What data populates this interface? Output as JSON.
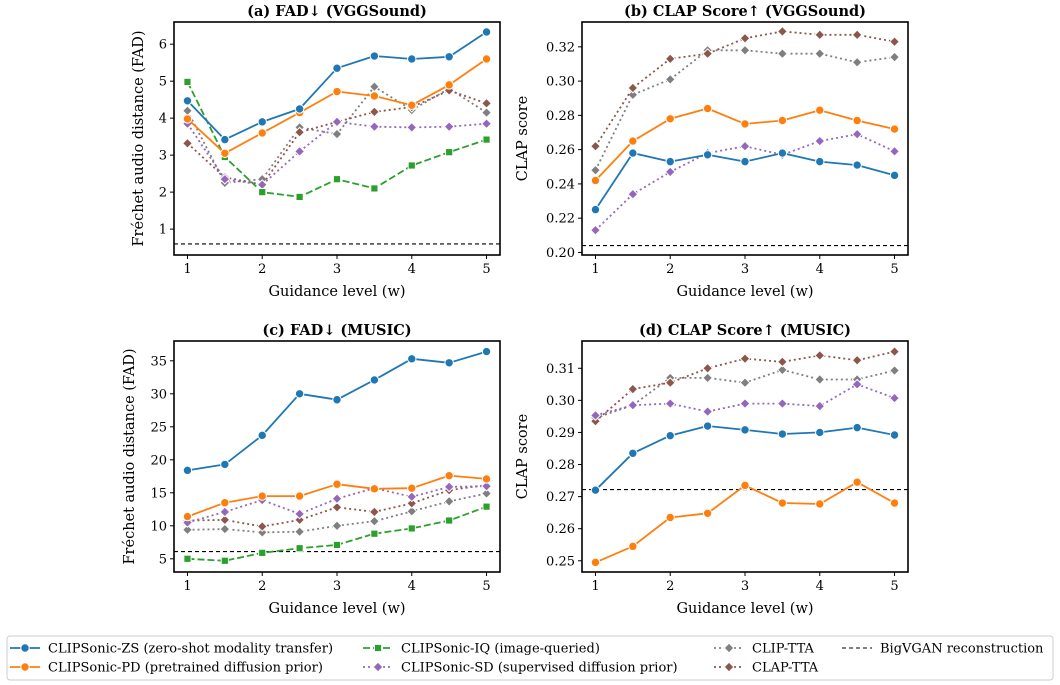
{
  "legend": {
    "items": [
      {
        "label": "CLIPSonic-ZS (zero-shot modality transfer)",
        "series": "zs"
      },
      {
        "label": "CLIPSonic-PD (pretrained diffusion prior)",
        "series": "pd"
      },
      {
        "label": "CLIPSonic-IQ (image-queried)",
        "series": "iq"
      },
      {
        "label": "CLIPSonic-SD (supervised diffusion prior)",
        "series": "sd"
      },
      {
        "label": "CLIP-TTA",
        "series": "cliptta"
      },
      {
        "label": "CLAP-TTA",
        "series": "claptta"
      },
      {
        "label": "BigVGAN reconstruction",
        "series": "bigvgan"
      }
    ]
  },
  "styles": {
    "zs": {
      "color": "#1f77b4",
      "dash": "",
      "marker": "circle"
    },
    "pd": {
      "color": "#ff7f0e",
      "dash": "",
      "marker": "circle"
    },
    "iq": {
      "color": "#2ca02c",
      "dash": "7,3",
      "marker": "square"
    },
    "sd": {
      "color": "#9467bd",
      "dash": "2,3",
      "marker": "diamond"
    },
    "cliptta": {
      "color": "#7f7f7f",
      "dash": "2,3",
      "marker": "diamond"
    },
    "claptta": {
      "color": "#8c564b",
      "dash": "2,3",
      "marker": "diamond"
    },
    "bigvgan": {
      "color": "#000000",
      "dash": "4,3",
      "marker": "none"
    }
  },
  "chart_data": [
    {
      "type": "line",
      "title": "(a) FAD↓ (VGGSound)",
      "xlabel": "Guidance level (w)",
      "ylabel": "Fréchet audio distance (FAD)",
      "x": [
        1,
        1.5,
        2,
        2.5,
        3,
        3.5,
        4,
        4.5,
        5
      ],
      "xlim": [
        0.82,
        5.18
      ],
      "ylim": [
        0.3,
        6.6
      ],
      "xticks": [
        1,
        2,
        3,
        4,
        5
      ],
      "yticks": [
        1,
        2,
        3,
        4,
        5,
        6
      ],
      "ytick_labels": [
        "1",
        "2",
        "3",
        "4",
        "5",
        "6"
      ],
      "reference_line": {
        "name": "BigVGAN reconstruction",
        "value": 0.6
      },
      "series": [
        {
          "key": "cliptta",
          "name": "CLIP-TTA",
          "values": [
            4.2,
            2.25,
            2.35,
            3.75,
            3.57,
            4.85,
            4.22,
            4.8,
            4.15
          ]
        },
        {
          "key": "claptta",
          "name": "CLAP-TTA",
          "values": [
            3.32,
            2.4,
            2.2,
            3.62,
            3.9,
            4.17,
            4.3,
            4.75,
            4.4
          ]
        },
        {
          "key": "sd",
          "name": "CLIPSonic-SD (supervised diffusion prior)",
          "values": [
            3.85,
            2.35,
            2.2,
            3.1,
            3.9,
            3.77,
            3.75,
            3.77,
            3.85
          ]
        },
        {
          "key": "iq",
          "name": "CLIPSonic-IQ (image-queried)",
          "values": [
            4.98,
            2.95,
            2.0,
            1.87,
            2.35,
            2.1,
            2.72,
            3.08,
            3.42
          ]
        },
        {
          "key": "pd",
          "name": "CLIPSonic-PD (pretrained diffusion prior)",
          "values": [
            3.98,
            3.05,
            3.6,
            4.15,
            4.72,
            4.6,
            4.35,
            4.9,
            5.6
          ]
        },
        {
          "key": "zs",
          "name": "CLIPSonic-ZS (zero-shot modality transfer)",
          "values": [
            4.47,
            3.42,
            3.9,
            4.25,
            5.35,
            5.68,
            5.6,
            5.66,
            6.33
          ]
        }
      ]
    },
    {
      "type": "line",
      "title": "(b) CLAP Score↑ (VGGSound)",
      "xlabel": "Guidance level (w)",
      "ylabel": "CLAP score",
      "x": [
        1,
        1.5,
        2,
        2.5,
        3,
        3.5,
        4,
        4.5,
        5
      ],
      "xlim": [
        0.82,
        5.18
      ],
      "ylim": [
        0.1985,
        0.3345
      ],
      "xticks": [
        1,
        2,
        3,
        4,
        5
      ],
      "yticks": [
        0.2,
        0.22,
        0.24,
        0.26,
        0.28,
        0.3,
        0.32
      ],
      "ytick_labels": [
        "0.20",
        "0.22",
        "0.24",
        "0.26",
        "0.28",
        "0.30",
        "0.32"
      ],
      "reference_line": {
        "name": "BigVGAN reconstruction",
        "value": 0.204
      },
      "series": [
        {
          "key": "cliptta",
          "name": "CLIP-TTA",
          "values": [
            0.248,
            0.292,
            0.301,
            0.318,
            0.318,
            0.316,
            0.316,
            0.311,
            0.314
          ]
        },
        {
          "key": "claptta",
          "name": "CLAP-TTA",
          "values": [
            0.262,
            0.296,
            0.313,
            0.316,
            0.325,
            0.329,
            0.327,
            0.327,
            0.323
          ]
        },
        {
          "key": "sd",
          "name": "CLIPSonic-SD (supervised diffusion prior)",
          "values": [
            0.213,
            0.234,
            0.247,
            0.258,
            0.262,
            0.257,
            0.265,
            0.269,
            0.259
          ]
        },
        {
          "key": "pd",
          "name": "CLIPSonic-PD (pretrained diffusion prior)",
          "values": [
            0.242,
            0.265,
            0.278,
            0.284,
            0.275,
            0.277,
            0.283,
            0.277,
            0.272
          ]
        },
        {
          "key": "zs",
          "name": "CLIPSonic-ZS (zero-shot modality transfer)",
          "values": [
            0.225,
            0.258,
            0.253,
            0.257,
            0.253,
            0.258,
            0.253,
            0.251,
            0.245
          ]
        }
      ]
    },
    {
      "type": "line",
      "title": "(c) FAD↓ (MUSIC)",
      "xlabel": "Guidance level (w)",
      "ylabel": "Fréchet audio distance (FAD)",
      "x": [
        1,
        1.5,
        2,
        2.5,
        3,
        3.5,
        4,
        4.5,
        5
      ],
      "xlim": [
        0.82,
        5.18
      ],
      "ylim": [
        3.0,
        38.0
      ],
      "xticks": [
        1,
        2,
        3,
        4,
        5
      ],
      "yticks": [
        5,
        10,
        15,
        20,
        25,
        30,
        35
      ],
      "ytick_labels": [
        "5",
        "10",
        "15",
        "20",
        "25",
        "30",
        "35"
      ],
      "reference_line": {
        "name": "BigVGAN reconstruction",
        "value": 6.1
      },
      "series": [
        {
          "key": "cliptta",
          "name": "CLIP-TTA",
          "values": [
            9.4,
            9.5,
            9.0,
            9.1,
            10.0,
            10.7,
            12.2,
            13.7,
            14.9
          ]
        },
        {
          "key": "claptta",
          "name": "CLAP-TTA",
          "values": [
            10.8,
            10.9,
            9.9,
            10.9,
            12.8,
            12.1,
            13.4,
            15.4,
            16.2
          ]
        },
        {
          "key": "sd",
          "name": "CLIPSonic-SD (supervised diffusion prior)",
          "values": [
            10.5,
            12.1,
            13.9,
            11.8,
            14.1,
            15.7,
            14.4,
            15.9,
            16.0
          ]
        },
        {
          "key": "iq",
          "name": "CLIPSonic-IQ (image-queried)",
          "values": [
            5.0,
            4.7,
            5.9,
            6.6,
            7.1,
            8.8,
            9.6,
            10.8,
            12.9
          ]
        },
        {
          "key": "pd",
          "name": "CLIPSonic-PD (pretrained diffusion prior)",
          "values": [
            11.4,
            13.5,
            14.5,
            14.5,
            16.3,
            15.6,
            15.7,
            17.6,
            17.1
          ]
        },
        {
          "key": "zs",
          "name": "CLIPSonic-ZS (zero-shot modality transfer)",
          "values": [
            18.4,
            19.3,
            23.7,
            30.0,
            29.1,
            32.1,
            35.3,
            34.7,
            36.4
          ]
        }
      ]
    },
    {
      "type": "line",
      "title": "(d) CLAP Score↑ (MUSIC)",
      "xlabel": "Guidance level (w)",
      "ylabel": "CLAP score",
      "x": [
        1,
        1.5,
        2,
        2.5,
        3,
        3.5,
        4,
        4.5,
        5
      ],
      "xlim": [
        0.82,
        5.18
      ],
      "ylim": [
        0.2465,
        0.3185
      ],
      "xticks": [
        1,
        2,
        3,
        4,
        5
      ],
      "yticks": [
        0.25,
        0.26,
        0.27,
        0.28,
        0.29,
        0.3,
        0.31
      ],
      "ytick_labels": [
        "0.25",
        "0.26",
        "0.27",
        "0.28",
        "0.29",
        "0.30",
        "0.31"
      ],
      "reference_line": {
        "name": "BigVGAN reconstruction",
        "value": 0.2722
      },
      "series": [
        {
          "key": "cliptta",
          "name": "CLIP-TTA",
          "values": [
            0.2945,
            0.2985,
            0.307,
            0.307,
            0.3055,
            0.3095,
            0.3065,
            0.3065,
            0.3093
          ]
        },
        {
          "key": "claptta",
          "name": "CLAP-TTA",
          "values": [
            0.2935,
            0.3035,
            0.3055,
            0.31,
            0.313,
            0.312,
            0.314,
            0.3125,
            0.3152
          ]
        },
        {
          "key": "sd",
          "name": "CLIPSonic-SD (supervised diffusion prior)",
          "values": [
            0.2953,
            0.2985,
            0.299,
            0.2965,
            0.299,
            0.299,
            0.2982,
            0.305,
            0.3007
          ]
        },
        {
          "key": "zs",
          "name": "CLIPSonic-ZS (zero-shot modality transfer)",
          "values": [
            0.272,
            0.2835,
            0.289,
            0.292,
            0.2908,
            0.2895,
            0.29,
            0.2915,
            0.2892
          ]
        },
        {
          "key": "pd",
          "name": "CLIPSonic-PD (pretrained diffusion prior)",
          "values": [
            0.2495,
            0.2545,
            0.2635,
            0.2648,
            0.2735,
            0.268,
            0.2677,
            0.2745,
            0.268
          ]
        }
      ]
    }
  ]
}
